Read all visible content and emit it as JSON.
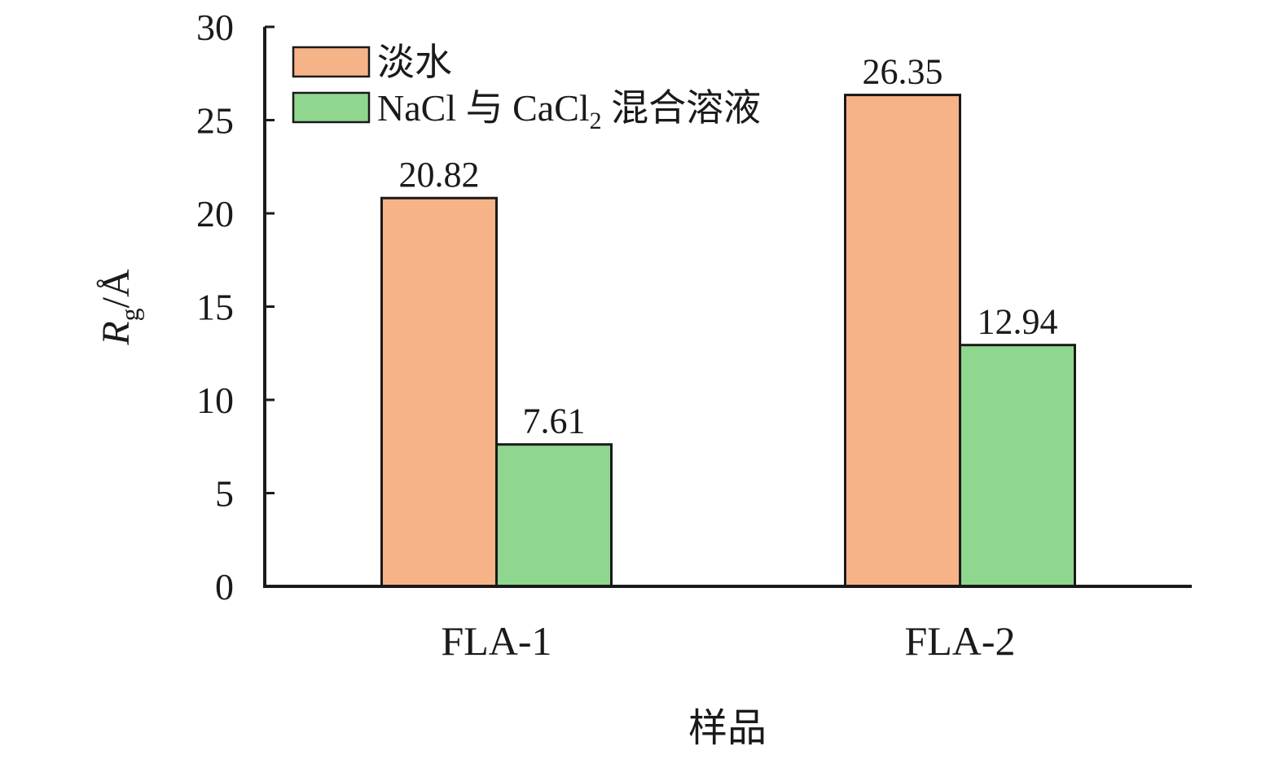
{
  "chart_data": {
    "type": "bar",
    "categories": [
      "FLA-1",
      "FLA-2"
    ],
    "series": [
      {
        "name": "淡水",
        "values": [
          20.82,
          26.35
        ],
        "labels": [
          "20.82",
          "26.35"
        ],
        "color": "#F6B387"
      },
      {
        "name": "NaCl 与 CaCl",
        "subscript": "2",
        "name_suffix": " 混合溶液",
        "values": [
          7.61,
          12.94
        ],
        "labels": [
          "7.61",
          "12.94"
        ],
        "color": "#8FD68F"
      }
    ],
    "title": "",
    "xlabel": "样品",
    "ylabel": {
      "main": "R",
      "sub": "g",
      "suffix": "/Å"
    },
    "ylim": [
      0,
      30
    ],
    "yticks": [
      0,
      5,
      10,
      15,
      20,
      25,
      30
    ],
    "ytick_labels": [
      "0",
      "5",
      "10",
      "15",
      "20",
      "25",
      "30"
    ],
    "grid": false,
    "legend_position": "top-left"
  }
}
